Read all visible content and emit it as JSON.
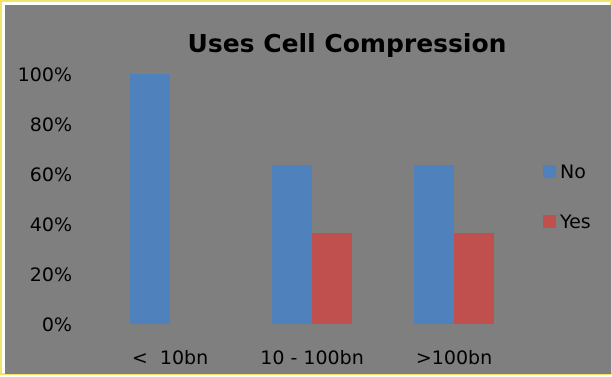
{
  "chart_data": {
    "type": "bar",
    "title": "Uses Cell Compression",
    "categories": [
      "<  10bn",
      "10 - 100bn",
      ">100bn"
    ],
    "series": [
      {
        "name": "No",
        "values": [
          100,
          63.6,
          63.6
        ],
        "color": "#4f81bd"
      },
      {
        "name": "Yes",
        "values": [
          0,
          36.4,
          36.4
        ],
        "color": "#c0504d"
      }
    ],
    "yticks": [
      "0%",
      "20%",
      "40%",
      "60%",
      "80%",
      "100%"
    ],
    "ylim": [
      0,
      100
    ],
    "grid": false,
    "legend": "right",
    "background": "#7f7f7f",
    "frame_color": "#f4e26a"
  }
}
